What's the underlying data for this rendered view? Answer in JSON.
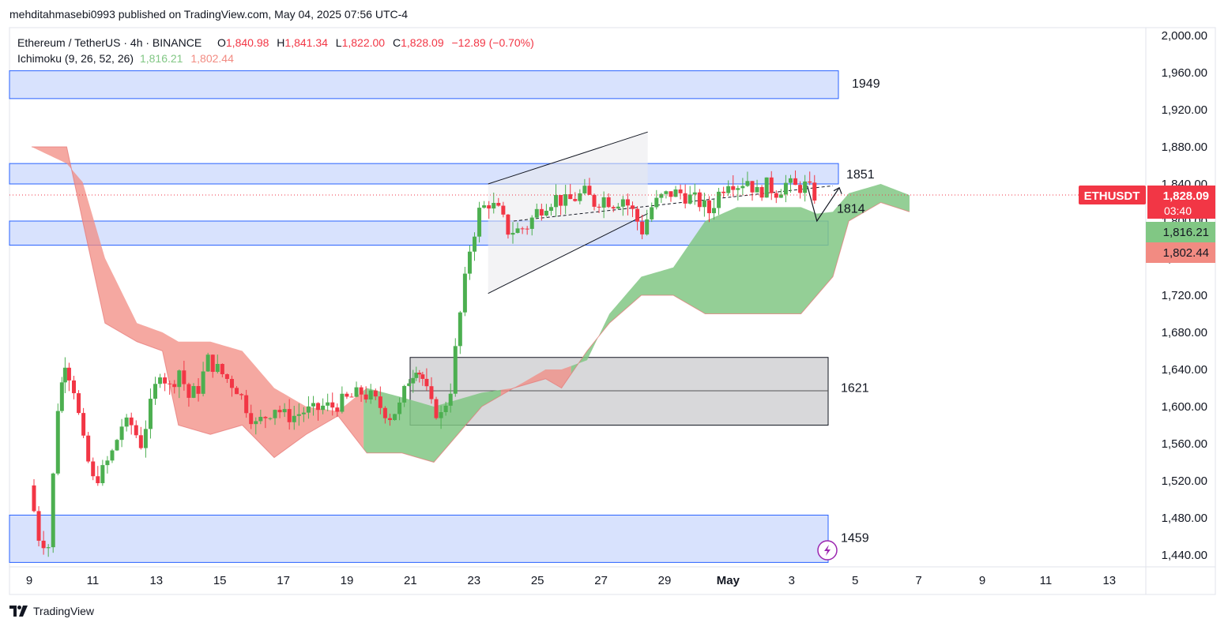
{
  "header": {
    "publisher": "mehditahmasebi0993 published on TradingView.com, May 04, 2025 07:56 UTC-4"
  },
  "legend": {
    "symbol": "Ethereum / TetherUS · 4h · BINANCE",
    "o_label": "O",
    "o_value": "1,840.98",
    "h_label": "H",
    "h_value": "1,841.34",
    "l_label": "L",
    "l_value": "1,822.00",
    "c_label": "C",
    "c_value": "1,828.09",
    "change": "−12.89 (−0.70%)",
    "indicator": "Ichimoku (9, 26, 52, 26)",
    "ind_value1": "1,816.21",
    "ind_value2": "1,802.44"
  },
  "price_axis": {
    "ticks": [
      "2,000.00",
      "1,960.00",
      "1,920.00",
      "1,880.00",
      "1,840.00",
      "1,800.00",
      "1,760.00",
      "1,720.00",
      "1,680.00",
      "1,640.00",
      "1,600.00",
      "1,560.00",
      "1,520.00",
      "1,480.00",
      "1,440.00"
    ],
    "current_symbol": "ETHUSDT",
    "current_price": "1,828.09",
    "countdown": "03:40",
    "label_green": "1,816.21",
    "label_red": "1,802.44"
  },
  "time_axis": {
    "ticks": [
      "9",
      "11",
      "13",
      "15",
      "17",
      "19",
      "21",
      "23",
      "25",
      "27",
      "29",
      "May",
      "3",
      "5",
      "7",
      "9",
      "11",
      "13"
    ]
  },
  "zones": {
    "z1949": "1949",
    "z1851": "1851",
    "z1814": "1814",
    "z1621": "1621",
    "z1459": "1459"
  },
  "footer": {
    "brand": "TradingView"
  },
  "colors": {
    "up": "#26a69a",
    "up_candle": "#4caf50",
    "down": "#f23645",
    "cloud_green": "#81c784",
    "cloud_red": "#f28b82",
    "zone_blue": "#d1ddfd",
    "zone_blue_border": "#2962ff",
    "zone_grey": "#d4d4d6"
  },
  "chart_data": {
    "type": "candlestick",
    "interval": "4h",
    "y_axis_range": [
      1430,
      2020
    ],
    "x_axis_range": [
      "2025-04-08",
      "2025-05-14"
    ],
    "horizontal_zones": [
      {
        "label": "1949",
        "low": 1932,
        "high": 1962
      },
      {
        "label": "1851",
        "low": 1840,
        "high": 1862
      },
      {
        "label": "1814",
        "low": 1774,
        "high": 1800
      },
      {
        "label": "1621",
        "low": 1580,
        "high": 1653
      },
      {
        "label": "1459",
        "low": 1432,
        "high": 1483
      }
    ],
    "channel": {
      "upper": [
        [
          23.2,
          1840
        ],
        [
          28.2,
          1896
        ]
      ],
      "lower": [
        [
          23.2,
          1722
        ],
        [
          28.2,
          1808
        ]
      ]
    },
    "close_path": [
      [
        8.9,
        1515
      ],
      [
        9.2,
        1460
      ],
      [
        9.5,
        1450
      ],
      [
        9.8,
        1600
      ],
      [
        10.0,
        1650
      ],
      [
        10.3,
        1620
      ],
      [
        10.6,
        1560
      ],
      [
        10.9,
        1520
      ],
      [
        11.2,
        1530
      ],
      [
        11.5,
        1550
      ],
      [
        11.8,
        1580
      ],
      [
        12.1,
        1580
      ],
      [
        12.4,
        1560
      ],
      [
        12.7,
        1600
      ],
      [
        13.0,
        1640
      ],
      [
        13.3,
        1620
      ],
      [
        13.6,
        1640
      ],
      [
        13.9,
        1610
      ],
      [
        14.2,
        1620
      ],
      [
        14.5,
        1650
      ],
      [
        14.8,
        1640
      ],
      [
        15.1,
        1630
      ],
      [
        15.4,
        1620
      ],
      [
        15.7,
        1600
      ],
      [
        16.0,
        1580
      ],
      [
        16.3,
        1590
      ],
      [
        16.6,
        1600
      ],
      [
        16.9,
        1590
      ],
      [
        17.2,
        1590
      ],
      [
        17.5,
        1595
      ],
      [
        17.8,
        1595
      ],
      [
        18.1,
        1600
      ],
      [
        18.4,
        1600
      ],
      [
        18.7,
        1605
      ],
      [
        19.0,
        1610
      ],
      [
        19.3,
        1615
      ],
      [
        19.6,
        1610
      ],
      [
        19.9,
        1600
      ],
      [
        20.2,
        1590
      ],
      [
        20.5,
        1600
      ],
      [
        20.8,
        1630
      ],
      [
        21.0,
        1645
      ],
      [
        21.2,
        1630
      ],
      [
        21.5,
        1600
      ],
      [
        21.8,
        1590
      ],
      [
        22.1,
        1620
      ],
      [
        22.4,
        1700
      ],
      [
        22.7,
        1770
      ],
      [
        23.0,
        1810
      ],
      [
        23.3,
        1820
      ],
      [
        23.6,
        1810
      ],
      [
        23.9,
        1790
      ],
      [
        24.2,
        1790
      ],
      [
        24.5,
        1795
      ],
      [
        24.8,
        1810
      ],
      [
        25.1,
        1820
      ],
      [
        25.4,
        1825
      ],
      [
        25.7,
        1820
      ],
      [
        26.0,
        1825
      ],
      [
        26.3,
        1830
      ],
      [
        26.6,
        1820
      ],
      [
        26.9,
        1825
      ],
      [
        27.2,
        1820
      ],
      [
        27.5,
        1825
      ],
      [
        27.8,
        1810
      ],
      [
        28.1,
        1790
      ],
      [
        28.4,
        1815
      ],
      [
        28.7,
        1825
      ],
      [
        29.0,
        1830
      ],
      [
        29.3,
        1830
      ],
      [
        29.6,
        1825
      ],
      [
        29.9,
        1820
      ],
      [
        30.2,
        1810
      ],
      [
        30.5,
        1830
      ],
      [
        30.8,
        1845
      ],
      [
        31.1,
        1840
      ],
      [
        31.4,
        1845
      ],
      [
        31.7,
        1830
      ],
      [
        32.0,
        1838
      ],
      [
        32.3,
        1832
      ],
      [
        32.6,
        1840
      ],
      [
        32.9,
        1836
      ],
      [
        33.2,
        1838
      ],
      [
        33.5,
        1828
      ]
    ],
    "cloud_bounds": [
      [
        8.9,
        1880
      ],
      [
        10.0,
        1880
      ],
      [
        10.5,
        1800
      ],
      [
        11.2,
        1690
      ],
      [
        12.2,
        1670
      ],
      [
        13.0,
        1660
      ],
      [
        13.5,
        1580
      ],
      [
        14.5,
        1570
      ],
      [
        15.5,
        1580
      ],
      [
        16.5,
        1545
      ],
      [
        17.5,
        1570
      ],
      [
        18.5,
        1590
      ],
      [
        19.4,
        1550
      ],
      [
        20.5,
        1550
      ],
      [
        21.5,
        1540
      ],
      [
        22.0,
        1560
      ],
      [
        23.0,
        1600
      ],
      [
        24.0,
        1620
      ],
      [
        25.0,
        1630
      ],
      [
        25.5,
        1620
      ],
      [
        26.3,
        1660
      ],
      [
        27.0,
        1690
      ],
      [
        28.0,
        1720
      ],
      [
        29.0,
        1720
      ],
      [
        30.0,
        1700
      ],
      [
        31.0,
        1700
      ],
      [
        32.0,
        1700
      ],
      [
        33.0,
        1700
      ],
      [
        33.5,
        1720
      ],
      [
        34.0,
        1740
      ],
      [
        34.5,
        1800
      ],
      [
        35.5,
        1820
      ],
      [
        36.4,
        1810
      ]
    ],
    "cloud_top": [
      [
        8.9,
        1880
      ],
      [
        10.0,
        1862
      ],
      [
        10.5,
        1842
      ],
      [
        11.2,
        1760
      ],
      [
        12.2,
        1690
      ],
      [
        13.0,
        1680
      ],
      [
        13.5,
        1670
      ],
      [
        14.5,
        1670
      ],
      [
        15.5,
        1660
      ],
      [
        16.5,
        1620
      ],
      [
        17.5,
        1600
      ],
      [
        18.5,
        1595
      ],
      [
        19.4,
        1620
      ],
      [
        20.5,
        1610
      ],
      [
        21.5,
        1600
      ],
      [
        22.0,
        1605
      ],
      [
        23.0,
        1615
      ],
      [
        24.0,
        1620
      ],
      [
        25.0,
        1640
      ],
      [
        25.5,
        1640
      ],
      [
        26.3,
        1650
      ],
      [
        27.0,
        1700
      ],
      [
        28.0,
        1740
      ],
      [
        29.0,
        1750
      ],
      [
        30.0,
        1800
      ],
      [
        31.0,
        1815
      ],
      [
        32.0,
        1815
      ],
      [
        33.0,
        1815
      ],
      [
        33.5,
        1808
      ],
      [
        34.0,
        1810
      ],
      [
        34.5,
        1830
      ],
      [
        35.5,
        1840
      ],
      [
        36.4,
        1828
      ]
    ],
    "cloud_colors": [
      {
        "from": 8.9,
        "to": 19.3,
        "color": "red"
      },
      {
        "from": 19.3,
        "to": 23.6,
        "color": "green"
      },
      {
        "from": 23.6,
        "to": 25.8,
        "color": "red"
      },
      {
        "from": 25.8,
        "to": 36.4,
        "color": "green"
      }
    ],
    "projection": [
      [
        33.2,
        1838
      ],
      [
        33.5,
        1800
      ],
      [
        34.2,
        1836
      ]
    ],
    "last_close": 1828.09
  }
}
